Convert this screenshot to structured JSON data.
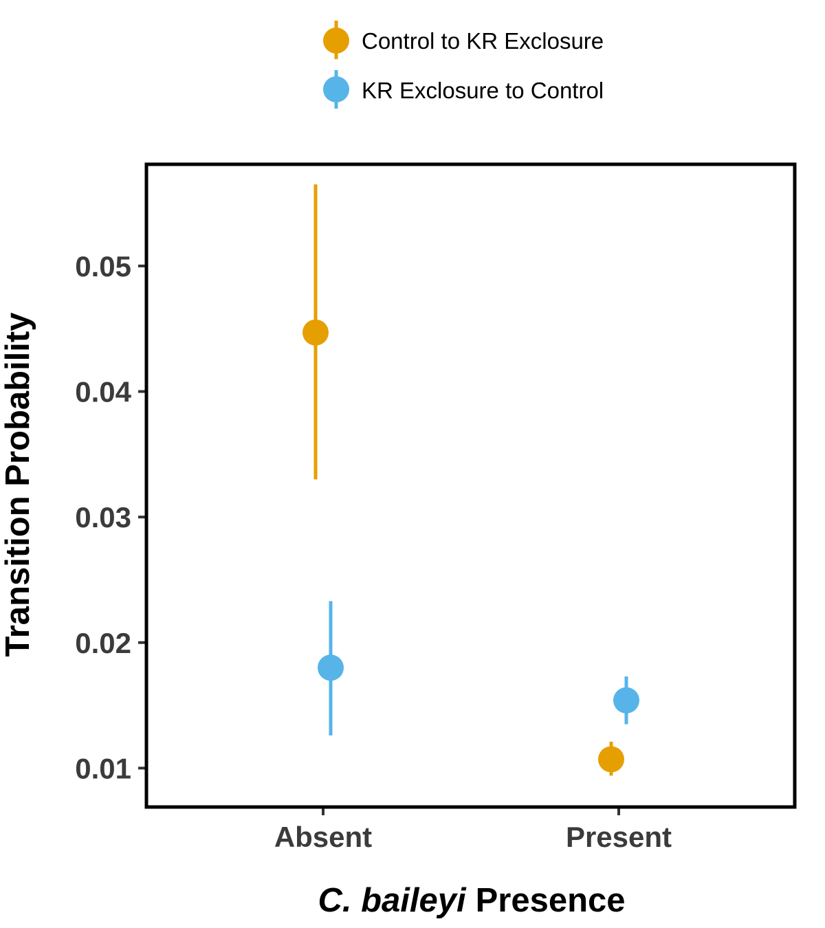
{
  "chart_data": {
    "type": "scatter",
    "subtype": "point-with-error-bars",
    "title": "",
    "xlabel_italic": "C. baileyi",
    "xlabel_rest": "Presence",
    "ylabel": "Transition Probability",
    "categories": [
      "Absent",
      "Present"
    ],
    "ylim": [
      0.0069,
      0.0581
    ],
    "yticks": [
      0.01,
      0.02,
      0.03,
      0.04,
      0.05
    ],
    "ytick_labels": [
      "0.01",
      "0.02",
      "0.03",
      "0.04",
      "0.05"
    ],
    "grid": false,
    "legend_position": "top",
    "series": [
      {
        "name": "Control to KR Exclosure",
        "color": "#E69F00",
        "values": [
          0.0447,
          0.0107
        ],
        "lower": [
          0.033,
          0.0094
        ],
        "upper": [
          0.0565,
          0.0121
        ]
      },
      {
        "name": "KR Exclosure to Control",
        "color": "#56B4E9",
        "values": [
          0.018,
          0.0154
        ],
        "lower": [
          0.0126,
          0.0135
        ],
        "upper": [
          0.0233,
          0.0173
        ]
      }
    ]
  }
}
